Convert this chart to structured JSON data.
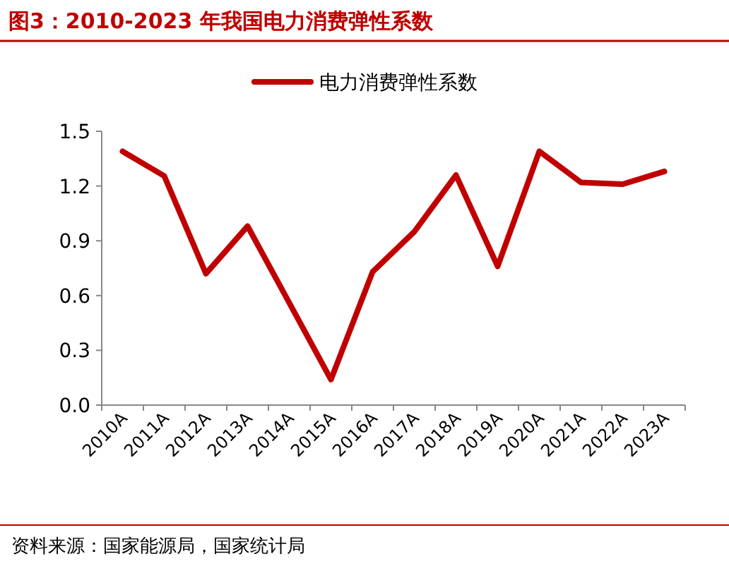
{
  "chart_data": {
    "type": "line",
    "title": "图3：2010-2023 年我国电力消费弹性系数",
    "categories": [
      "2010A",
      "2011A",
      "2012A",
      "2013A",
      "2014A",
      "2015A",
      "2016A",
      "2017A",
      "2018A",
      "2019A",
      "2020A",
      "2021A",
      "2022A",
      "2023A"
    ],
    "series": [
      {
        "name": "电力消费弹性系数",
        "color": "#c00000",
        "values": [
          1.39,
          1.255,
          0.72,
          0.98,
          0.56,
          0.14,
          0.73,
          0.95,
          1.26,
          0.76,
          1.39,
          1.22,
          1.21,
          1.28
        ]
      }
    ],
    "ylim": [
      0,
      1.5
    ],
    "yticks": [
      {
        "value": 0,
        "label": "0.0"
      },
      {
        "value": 0.3,
        "label": "0.3"
      },
      {
        "value": 0.6,
        "label": "0.6"
      },
      {
        "value": 0.9,
        "label": "0.9"
      },
      {
        "value": 1.2,
        "label": "1.2"
      },
      {
        "value": 1.5,
        "label": "1.5"
      }
    ],
    "grid": false,
    "legend": "top",
    "marker": "none",
    "line_style": "solid",
    "annotations": [
      "资料来源：国家能源局，国家统计局"
    ]
  }
}
